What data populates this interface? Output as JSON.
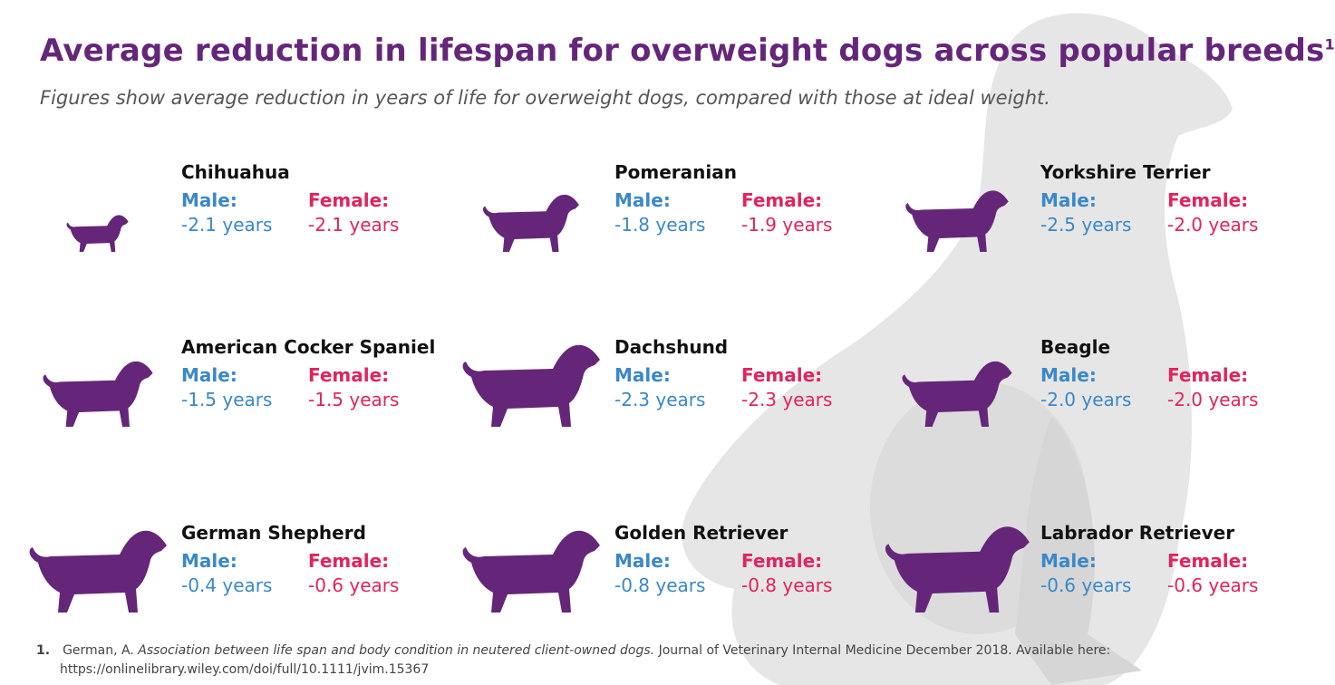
{
  "title": "Average reduction in lifespan for overweight dogs across popular breeds",
  "title_footnote_marker": "1",
  "subtitle": "Figures show average reduction in years of life for overweight dogs, compared with those at ideal weight.",
  "labels": {
    "male": "Male:",
    "female": "Female:"
  },
  "colors": {
    "title": "#65267a",
    "male": "#3a88c8",
    "female": "#e0245e",
    "silhouette": "#65267a",
    "background_dog": "#e6e6e6"
  },
  "breeds": [
    {
      "name": "Chihuahua",
      "icon": "chihuahua-silhouette",
      "male": "-2.1 years",
      "female": "-2.1 years"
    },
    {
      "name": "Pomeranian",
      "icon": "pomeranian-silhouette",
      "male": "-1.8 years",
      "female": "-1.9 years"
    },
    {
      "name": "Yorkshire Terrier",
      "icon": "yorkshire-terrier-silhouette",
      "male": "-2.5 years",
      "female": "-2.0 years"
    },
    {
      "name": "American Cocker Spaniel",
      "icon": "cocker-spaniel-silhouette",
      "male": "-1.5 years",
      "female": "-1.5 years"
    },
    {
      "name": "Dachshund",
      "icon": "dachshund-silhouette",
      "male": "-2.3 years",
      "female": "-2.3 years"
    },
    {
      "name": "Beagle",
      "icon": "beagle-silhouette",
      "male": "-2.0 years",
      "female": "-2.0 years"
    },
    {
      "name": "German Shepherd",
      "icon": "german-shepherd-silhouette",
      "male": "-0.4 years",
      "female": "-0.6 years"
    },
    {
      "name": "Golden Retriever",
      "icon": "golden-retriever-silhouette",
      "male": "-0.8 years",
      "female": "-0.8 years"
    },
    {
      "name": "Labrador Retriever",
      "icon": "labrador-retriever-silhouette",
      "male": "-0.6 years",
      "female": "-0.6 years"
    }
  ],
  "footnote": {
    "number": "1.",
    "author": "German, A.",
    "article": "Association between life span and body condition in neutered client-owned dogs.",
    "journal": "Journal of Veterinary Internal Medicine December 2018. Available here:",
    "url": "https://onlinelibrary.wiley.com/doi/full/10.1111/jvim.15367"
  }
}
